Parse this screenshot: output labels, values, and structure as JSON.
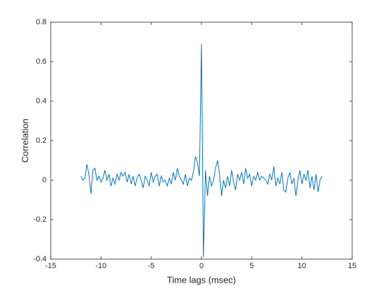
{
  "chart_data": {
    "type": "line",
    "xlabel": "Time lags (msec)",
    "ylabel": "Correlation",
    "x": [
      -12,
      -11.8,
      -11.6,
      -11.4,
      -11.2,
      -11,
      -10.8,
      -10.6,
      -10.4,
      -10.2,
      -10,
      -9.8,
      -9.6,
      -9.4,
      -9.2,
      -9,
      -8.8,
      -8.6,
      -8.4,
      -8.2,
      -8,
      -7.8,
      -7.6,
      -7.4,
      -7.2,
      -7,
      -6.8,
      -6.6,
      -6.4,
      -6.2,
      -6,
      -5.8,
      -5.6,
      -5.4,
      -5.2,
      -5,
      -4.8,
      -4.6,
      -4.4,
      -4.2,
      -4,
      -3.8,
      -3.6,
      -3.4,
      -3.2,
      -3,
      -2.8,
      -2.6,
      -2.4,
      -2.2,
      -2,
      -1.8,
      -1.6,
      -1.4,
      -1.2,
      -1,
      -0.8,
      -0.6,
      -0.4,
      -0.2,
      0,
      0.2,
      0.4,
      0.6,
      0.8,
      1,
      1.2,
      1.4,
      1.6,
      1.8,
      2,
      2.2,
      2.4,
      2.6,
      2.8,
      3,
      3.2,
      3.4,
      3.6,
      3.8,
      4,
      4.2,
      4.4,
      4.6,
      4.8,
      5,
      5.2,
      5.4,
      5.6,
      5.8,
      6,
      6.2,
      6.4,
      6.6,
      6.8,
      7,
      7.2,
      7.4,
      7.6,
      7.8,
      8,
      8.2,
      8.4,
      8.6,
      8.8,
      9,
      9.2,
      9.4,
      9.6,
      9.8,
      10,
      10.2,
      10.4,
      10.6,
      10.8,
      11,
      11.2,
      11.4,
      11.6,
      11.8,
      12
    ],
    "values": [
      0.02,
      0,
      0.01,
      0.08,
      0.03,
      -0.07,
      0.05,
      0.06,
      0,
      0.02,
      -0.01,
      0.01,
      0.05,
      0,
      0.03,
      -0.03,
      0.01,
      -0.02,
      0.03,
      0,
      0.04,
      0.02,
      0.04,
      -0.01,
      0.03,
      -0.02,
      0.02,
      -0.03,
      0.01,
      0.03,
      0,
      -0.04,
      0.02,
      0,
      -0.03,
      0.04,
      -0.01,
      0.02,
      0.03,
      -0.03,
      0.02,
      -0.01,
      0,
      -0.03,
      0.01,
      -0.02,
      0.04,
      0,
      0.06,
      0.02,
      0,
      -0.02,
      0.03,
      -0.03,
      0.01,
      0,
      0.04,
      0.12,
      0.09,
      0.02,
      0.69,
      -0.39,
      0.05,
      -0.08,
      0.02,
      -0.03,
      0,
      0.06,
      0.1,
      0.03,
      -0.08,
      0,
      -0.04,
      0.02,
      -0.03,
      0.05,
      -0.01,
      -0.05,
      0.03,
      0,
      0.04,
      -0.02,
      0.06,
      0.01,
      0.03,
      -0.03,
      0.02,
      0,
      0.04,
      0,
      0.02,
      0.01,
      0,
      -0.02,
      0.03,
      0,
      0.07,
      -0.03,
      0.01,
      -0.02,
      0.04,
      -0.05,
      -0.06,
      0.01,
      0.04,
      -0.02,
      0.01,
      -0.08,
      0,
      0.05,
      -0.02,
      0.03,
      0,
      0.05,
      -0.04,
      0.02,
      -0.05,
      0.03,
      -0.06,
      0,
      0.02
    ],
    "color": "#0072bd",
    "xlim": [
      -15,
      15
    ],
    "xticks": [
      -15,
      -10,
      -5,
      0,
      5,
      10,
      15
    ],
    "ylim": [
      -0.4,
      0.8
    ],
    "yticks": [
      -0.4,
      -0.2,
      0,
      0.2,
      0.4,
      0.6,
      0.8
    ]
  }
}
